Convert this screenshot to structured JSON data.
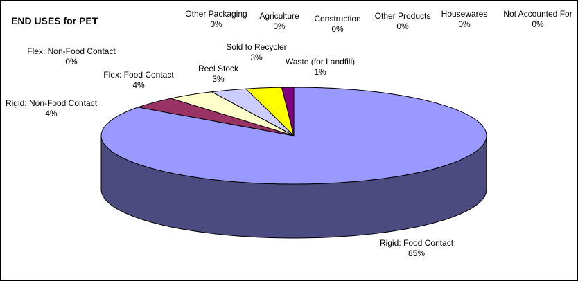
{
  "chart_data": {
    "type": "pie",
    "title": "END USES for PET",
    "slices": [
      {
        "label": "Rigid: Food Contact",
        "value": 85,
        "value_label": "85%",
        "color": "#9999ff",
        "side": "#4b4b80"
      },
      {
        "label": "Rigid: Non-Food Contact",
        "value": 4,
        "value_label": "4%",
        "color": "#993366",
        "side": "#4d1a33"
      },
      {
        "label": "Flex: Food Contact",
        "value": 4,
        "value_label": "4%",
        "color": "#ffffcc",
        "side": "#808066"
      },
      {
        "label": "Flex: Non-Food Contact",
        "value": 0,
        "value_label": "0%",
        "color": "#ccffff",
        "side": "#668080"
      },
      {
        "label": "Reel Stock",
        "value": 3,
        "value_label": "3%",
        "color": "#ccccff",
        "side": "#666680"
      },
      {
        "label": "Sold to Recycler",
        "value": 3,
        "value_label": "3%",
        "color": "#ffff00",
        "side": "#808000"
      },
      {
        "label": "Waste (for Landfill)",
        "value": 1,
        "value_label": "1%",
        "color": "#800080",
        "side": "#400040"
      },
      {
        "label": "Other Packaging",
        "value": 0,
        "value_label": "0%",
        "color": "#ff8080",
        "side": "#804040"
      },
      {
        "label": "Agriculture",
        "value": 0,
        "value_label": "0%",
        "color": "#0066cc",
        "side": "#003366"
      },
      {
        "label": "Construction",
        "value": 0,
        "value_label": "0%",
        "color": "#ccffcc",
        "side": "#668066"
      },
      {
        "label": "Other Products",
        "value": 0,
        "value_label": "0%",
        "color": "#ff99cc",
        "side": "#804d66"
      },
      {
        "label": "Housewares",
        "value": 0,
        "value_label": "0%",
        "color": "#33cccc",
        "side": "#1a6666"
      },
      {
        "label": "Not Accounted For",
        "value": 0,
        "value_label": "0%",
        "color": "#000080",
        "side": "#000040"
      }
    ],
    "legend": "none"
  }
}
